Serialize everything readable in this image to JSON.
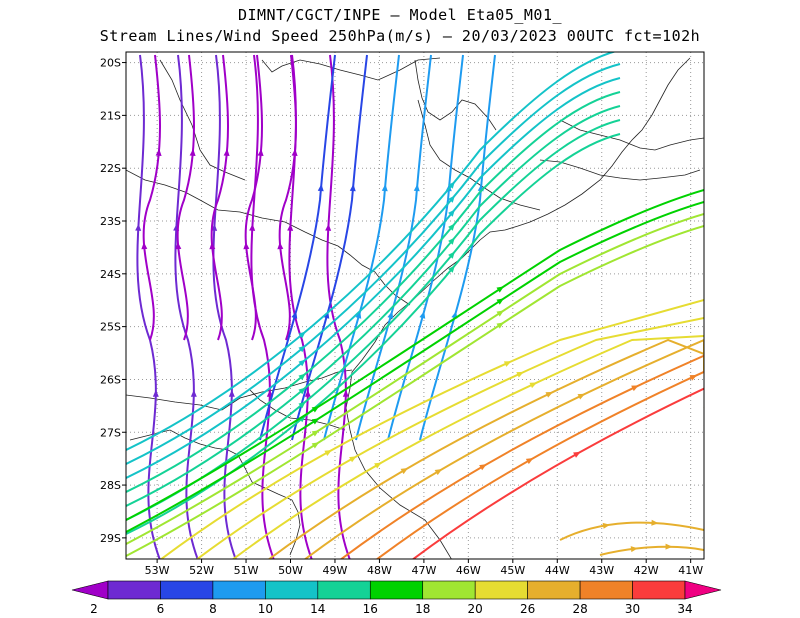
{
  "title": {
    "line1": "DIMNT/CGCT/INPE  —  Model Eta05_M01_",
    "line2": "Stream Lines/Wind Speed 250hPa(m/s)  —  20/03/2023 00UTC fct=102h"
  },
  "chart_data": {
    "type": "streamlines",
    "variable": "Wind Speed 250hPa (m/s)",
    "xlim": [
      -53.7,
      -40.7
    ],
    "ylim": [
      -29.4,
      -19.8
    ],
    "x_ticks": [
      {
        "value": -53,
        "label": "53W"
      },
      {
        "value": -52,
        "label": "52W"
      },
      {
        "value": -51,
        "label": "51W"
      },
      {
        "value": -50,
        "label": "50W"
      },
      {
        "value": -49,
        "label": "49W"
      },
      {
        "value": -48,
        "label": "48W"
      },
      {
        "value": -47,
        "label": "47W"
      },
      {
        "value": -46,
        "label": "46W"
      },
      {
        "value": -45,
        "label": "45W"
      },
      {
        "value": -44,
        "label": "44W"
      },
      {
        "value": -43,
        "label": "43W"
      },
      {
        "value": -42,
        "label": "42W"
      },
      {
        "value": -41,
        "label": "41W"
      }
    ],
    "y_ticks": [
      {
        "value": -20,
        "label": "20S"
      },
      {
        "value": -21,
        "label": "21S"
      },
      {
        "value": -22,
        "label": "22S"
      },
      {
        "value": -23,
        "label": "23S"
      },
      {
        "value": -24,
        "label": "24S"
      },
      {
        "value": -25,
        "label": "25S"
      },
      {
        "value": -26,
        "label": "26S"
      },
      {
        "value": -27,
        "label": "27S"
      },
      {
        "value": -28,
        "label": "28S"
      },
      {
        "value": -29,
        "label": "29S"
      }
    ],
    "grid": true,
    "colorbar": {
      "labels": [
        "2",
        "6",
        "8",
        "10",
        "14",
        "16",
        "18",
        "20",
        "26",
        "28",
        "30",
        "34"
      ],
      "colors": [
        "#a000c8",
        "#6e2ad2",
        "#2846e6",
        "#1e9bf0",
        "#14c3c8",
        "#14d296",
        "#00d200",
        "#a0e632",
        "#e6dc32",
        "#e6af2d",
        "#f08228",
        "#fa3c3c",
        "#f00082"
      ]
    }
  }
}
